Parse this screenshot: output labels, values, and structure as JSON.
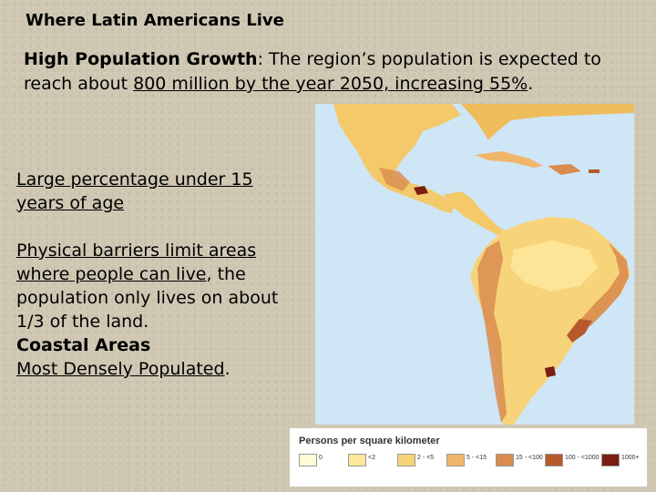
{
  "slide": {
    "title": "Where Latin Americans Live",
    "growth_label": "High Population Growth",
    "growth_text_1": ": The region’s population is expected to reach about ",
    "growth_text_underlined": "800 million by the year 2050, increasing 55%",
    "growth_text_2": ".",
    "point_1": "Large percentage under 15 years of age",
    "point_2_underlined": "Physical barriers limit areas where people can live",
    "point_2_text": ", the population only lives on about 1/3 of the land.",
    "coastal_label": "Coastal Areas",
    "densest_label": "Most Densely Populated",
    "densest_period": "."
  },
  "legend": {
    "title": "Persons per square kilometer",
    "items": [
      {
        "label": "0",
        "color": "#fffbd6"
      },
      {
        "label": "<2",
        "color": "#fde79a"
      },
      {
        "label": "2 - <5",
        "color": "#f7d37a"
      },
      {
        "label": "5 - <15",
        "color": "#f0b56a"
      },
      {
        "label": "15 - <100",
        "color": "#d98c4e"
      },
      {
        "label": "100 - <1000",
        "color": "#b65a2c"
      },
      {
        "label": "1000+",
        "color": "#7a1d12"
      }
    ]
  },
  "map": {
    "ocean_color": "#cfe6f7",
    "land_color": "#f3c96a"
  }
}
